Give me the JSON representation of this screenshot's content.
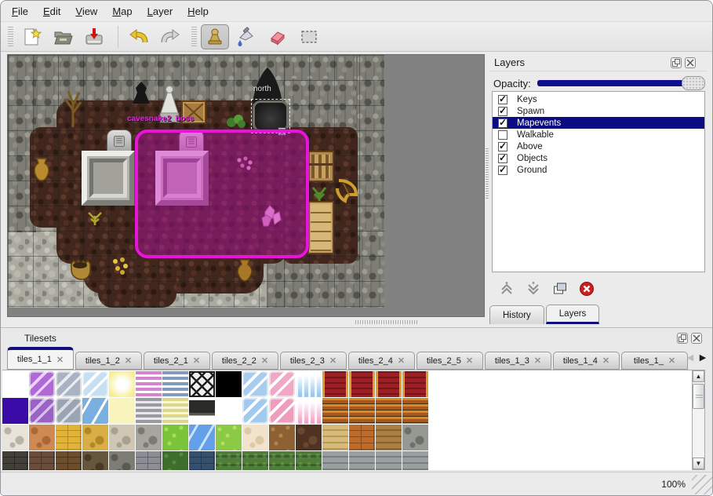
{
  "menu": {
    "items": [
      "File",
      "Edit",
      "View",
      "Map",
      "Layer",
      "Help"
    ]
  },
  "toolbar": {
    "buttons": [
      {
        "name": "new-file",
        "selected": false
      },
      {
        "name": "open-file",
        "selected": false
      },
      {
        "name": "save-file",
        "selected": false
      },
      {
        "name": "undo",
        "selected": false
      },
      {
        "name": "redo",
        "selected": false
      },
      {
        "name": "stamp-tool",
        "selected": true
      },
      {
        "name": "fill-tool",
        "selected": false
      },
      {
        "name": "eraser-tool",
        "selected": false
      },
      {
        "name": "select-rectangle-tool",
        "selected": false
      }
    ]
  },
  "map": {
    "labels": {
      "north": "north",
      "boss": "cavesnake2_boss"
    }
  },
  "layers_panel": {
    "title": "Layers",
    "opacity_label": "Opacity:",
    "layers": [
      {
        "label": "Keys",
        "checked": true,
        "selected": false
      },
      {
        "label": "Spawn",
        "checked": true,
        "selected": false
      },
      {
        "label": "Mapevents",
        "checked": true,
        "selected": true
      },
      {
        "label": "Walkable",
        "checked": false,
        "selected": false
      },
      {
        "label": "Above",
        "checked": true,
        "selected": false
      },
      {
        "label": "Objects",
        "checked": true,
        "selected": false
      },
      {
        "label": "Ground",
        "checked": true,
        "selected": false
      }
    ],
    "toolbar": [
      "move-layer-up",
      "move-layer-down",
      "duplicate-layer",
      "delete-layer"
    ],
    "footer_tabs": [
      {
        "label": "History",
        "active": false
      },
      {
        "label": "Layers",
        "active": true
      }
    ]
  },
  "tilesets_panel": {
    "title": "Tilesets",
    "tabs": [
      {
        "label": "tiles_1_1",
        "active": true
      },
      {
        "label": "tiles_1_2",
        "active": false
      },
      {
        "label": "tiles_2_1",
        "active": false
      },
      {
        "label": "tiles_2_2",
        "active": false
      },
      {
        "label": "tiles_2_3",
        "active": false
      },
      {
        "label": "tiles_2_4",
        "active": false
      },
      {
        "label": "tiles_2_5",
        "active": false
      },
      {
        "label": "tiles_1_3",
        "active": false
      },
      {
        "label": "tiles_1_4",
        "active": false
      },
      {
        "label": "tiles_1_",
        "active": false
      }
    ],
    "tile_rows": [
      [
        {
          "p": "solid",
          "a": "#ffffff",
          "b": "#ffffff"
        },
        {
          "p": "glass",
          "a": "#b06ad8",
          "b": "#ecd2fa"
        },
        {
          "p": "glass",
          "a": "#a9b3c1",
          "b": "#e9edf1"
        },
        {
          "p": "glass",
          "a": "#c6dff2",
          "b": "#ffffff"
        },
        {
          "p": "glow",
          "a": "#f6ee8e",
          "b": "#ffffff"
        },
        {
          "p": "hstr",
          "a": "#d783cf",
          "b": "#ffffff"
        },
        {
          "p": "hstr",
          "a": "#8298bc",
          "b": "#ffffff"
        },
        {
          "p": "lattice",
          "a": "#f0f0f0",
          "b": "#1c1c1c"
        },
        {
          "p": "solid",
          "a": "#000000",
          "b": "#000000"
        },
        {
          "p": "glass",
          "a": "#a8ccee",
          "b": "#ffffff"
        },
        {
          "p": "glass",
          "a": "#f0a8c6",
          "b": "#ffffff"
        },
        {
          "p": "ice",
          "a": "#9cc8ee",
          "b": "#ffffff"
        },
        {
          "p": "carpet",
          "a": "#9e1f23",
          "b": "#d8a028"
        },
        {
          "p": "carpet",
          "a": "#9e1f23",
          "b": "#d8a028"
        },
        {
          "p": "carpet",
          "a": "#9e1f23",
          "b": "#d8a028"
        },
        {
          "p": "carpet",
          "a": "#9e1f23",
          "b": "#d8a028"
        }
      ],
      [
        {
          "p": "solid",
          "a": "#3a0ba6",
          "b": "#3a0ba6"
        },
        {
          "p": "glass",
          "a": "#9a62c4",
          "b": "#d9c1ef"
        },
        {
          "p": "glass",
          "a": "#9aa4b2",
          "b": "#d9dee3"
        },
        {
          "p": "water",
          "a": "#7ab0e0",
          "b": "#ffffff"
        },
        {
          "p": "solid",
          "a": "#f8f4bc",
          "b": "#f8f4bc"
        },
        {
          "p": "hstr",
          "a": "#9a9aa2",
          "b": "#e9e9ed"
        },
        {
          "p": "hstr",
          "a": "#ddd78e",
          "b": "#f9f7d9"
        },
        {
          "p": "sign",
          "a": "#2a2a28",
          "b": "#555550"
        },
        {
          "p": "solid",
          "a": "#ffffff",
          "b": "#ffffff"
        },
        {
          "p": "glass",
          "a": "#a0cbf0",
          "b": "#ffffff"
        },
        {
          "p": "glass",
          "a": "#f09cbc",
          "b": "#ffffff"
        },
        {
          "p": "ice",
          "a": "#f0a8c8",
          "b": "#ffffff"
        },
        {
          "p": "wood",
          "a": "#a85818",
          "b": "#d88828"
        },
        {
          "p": "wood",
          "a": "#a85818",
          "b": "#d88828"
        },
        {
          "p": "wood",
          "a": "#a85818",
          "b": "#d88828"
        },
        {
          "p": "wood",
          "a": "#a85818",
          "b": "#d88828"
        }
      ],
      [
        {
          "p": "stone",
          "a": "#e8e4da",
          "b": "#b8b4a8"
        },
        {
          "p": "stone",
          "a": "#cf8a52",
          "b": "#a86838"
        },
        {
          "p": "brick",
          "a": "#e2b337",
          "b": "#b88a20"
        },
        {
          "p": "stone",
          "a": "#d9af45",
          "b": "#b08828"
        },
        {
          "p": "stone",
          "a": "#cfc7b4",
          "b": "#a8a090"
        },
        {
          "p": "stone",
          "a": "#a6a69e",
          "b": "#7a7a72"
        },
        {
          "p": "grass",
          "a": "#7bc339",
          "b": "#a8dd60"
        },
        {
          "p": "water",
          "a": "#63a0e8",
          "b": "#c8e4ff"
        },
        {
          "p": "grass",
          "a": "#8cc944",
          "b": "#b2e068"
        },
        {
          "p": "stone",
          "a": "#f2e4cc",
          "b": "#ddc8a8"
        },
        {
          "p": "grass",
          "a": "#8e6134",
          "b": "#b08848"
        },
        {
          "p": "stone",
          "a": "#4e3322",
          "b": "#6a4830"
        },
        {
          "p": "planks",
          "a": "#d5ba7a",
          "b": "#b89858"
        },
        {
          "p": "brick",
          "a": "#c06a2a",
          "b": "#8a4a18"
        },
        {
          "p": "planks",
          "a": "#a97f43",
          "b": "#8a6230"
        },
        {
          "p": "stone",
          "a": "#949a92",
          "b": "#6a706a"
        }
      ],
      [
        {
          "p": "brick",
          "a": "#413f38",
          "b": "#2a2822"
        },
        {
          "p": "brick",
          "a": "#6b4c3a",
          "b": "#4a3426"
        },
        {
          "p": "brick",
          "a": "#6d4d2c",
          "b": "#4a3418"
        },
        {
          "p": "stone",
          "a": "#66563c",
          "b": "#463a26"
        },
        {
          "p": "stone",
          "a": "#7d7d75",
          "b": "#5a5a52"
        },
        {
          "p": "brick",
          "a": "#8d8d95",
          "b": "#62626a"
        },
        {
          "p": "grass",
          "a": "#3e6e2c",
          "b": "#568a3c"
        },
        {
          "p": "brick",
          "a": "#35506e",
          "b": "#243a52"
        },
        {
          "p": "crops",
          "a": "#4f7d3a",
          "b": "#6fa050"
        },
        {
          "p": "crops",
          "a": "#4f7d3a",
          "b": "#6fa050"
        },
        {
          "p": "crops",
          "a": "#4f7d3a",
          "b": "#6fa050"
        },
        {
          "p": "crops",
          "a": "#4f7d3a",
          "b": "#6fa050"
        },
        {
          "p": "planks",
          "a": "#9aa0a0",
          "b": "#787e7e"
        },
        {
          "p": "planks",
          "a": "#9aa0a0",
          "b": "#787e7e"
        },
        {
          "p": "planks",
          "a": "#9aa0a0",
          "b": "#787e7e"
        },
        {
          "p": "planks",
          "a": "#9aa0a0",
          "b": "#787e7e"
        }
      ]
    ]
  },
  "status_bar": {
    "zoom_level": "100%"
  },
  "colors": {
    "selection_border": "#e616d6",
    "selection_fill": "rgba(198,16,178,0.42)",
    "list_highlight": "#0b0b84",
    "opacity_track": "#10108c",
    "active_tab_bar": "#10107a"
  }
}
